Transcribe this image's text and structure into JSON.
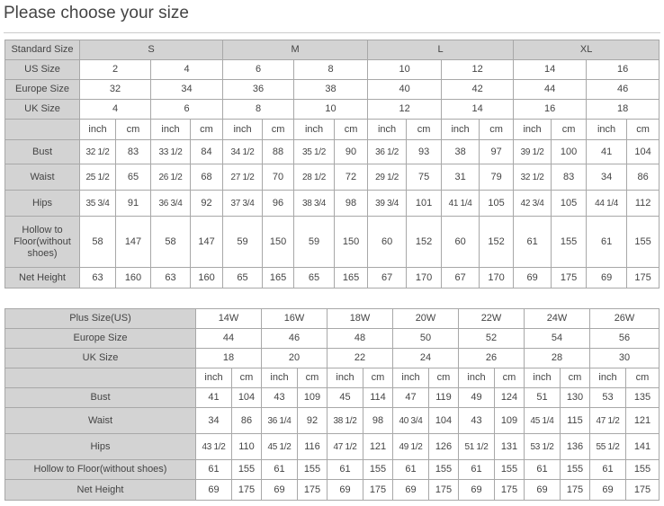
{
  "title": "Please choose your size",
  "standard_table": {
    "header_label": "Standard Size",
    "groups": [
      "S",
      "M",
      "L",
      "XL"
    ],
    "size_rows": [
      {
        "label": "US Size",
        "values": [
          "2",
          "4",
          "6",
          "8",
          "10",
          "12",
          "14",
          "16"
        ]
      },
      {
        "label": "Europe Size",
        "values": [
          "32",
          "34",
          "36",
          "38",
          "40",
          "42",
          "44",
          "46"
        ]
      },
      {
        "label": "UK Size",
        "values": [
          "4",
          "6",
          "8",
          "10",
          "12",
          "14",
          "16",
          "18"
        ]
      }
    ],
    "units": [
      "inch",
      "cm"
    ],
    "measure_rows": [
      {
        "label": "Bust",
        "values": [
          "32 1/2",
          "83",
          "33 1/2",
          "84",
          "34 1/2",
          "88",
          "35 1/2",
          "90",
          "36 1/2",
          "93",
          "38",
          "97",
          "39 1/2",
          "100",
          "41",
          "104"
        ]
      },
      {
        "label": "Waist",
        "values": [
          "25 1/2",
          "65",
          "26 1/2",
          "68",
          "27 1/2",
          "70",
          "28 1/2",
          "72",
          "29 1/2",
          "75",
          "31",
          "79",
          "32 1/2",
          "83",
          "34",
          "86"
        ]
      },
      {
        "label": "Hips",
        "values": [
          "35 3/4",
          "91",
          "36 3/4",
          "92",
          "37 3/4",
          "96",
          "38 3/4",
          "98",
          "39 3/4",
          "101",
          "41 1/4",
          "105",
          "42 3/4",
          "105",
          "44 1/4",
          "112"
        ]
      },
      {
        "label": "Hollow to Floor(without shoes)",
        "values": [
          "58",
          "147",
          "58",
          "147",
          "59",
          "150",
          "59",
          "150",
          "60",
          "152",
          "60",
          "152",
          "61",
          "155",
          "61",
          "155"
        ]
      },
      {
        "label": "Net Height",
        "values": [
          "63",
          "160",
          "63",
          "160",
          "65",
          "165",
          "65",
          "165",
          "67",
          "170",
          "67",
          "170",
          "69",
          "175",
          "69",
          "175"
        ]
      }
    ]
  },
  "plus_table": {
    "size_rows": [
      {
        "label": "Plus Size(US)",
        "values": [
          "14W",
          "16W",
          "18W",
          "20W",
          "22W",
          "24W",
          "26W"
        ]
      },
      {
        "label": "Europe Size",
        "values": [
          "44",
          "46",
          "48",
          "50",
          "52",
          "54",
          "56"
        ]
      },
      {
        "label": "UK Size",
        "values": [
          "18",
          "20",
          "22",
          "24",
          "26",
          "28",
          "30"
        ]
      }
    ],
    "units": [
      "inch",
      "cm"
    ],
    "measure_rows": [
      {
        "label": "Bust",
        "values": [
          "41",
          "104",
          "43",
          "109",
          "45",
          "114",
          "47",
          "119",
          "49",
          "124",
          "51",
          "130",
          "53",
          "135"
        ]
      },
      {
        "label": "Waist",
        "values": [
          "34",
          "86",
          "36 1/4",
          "92",
          "38 1/2",
          "98",
          "40 3/4",
          "104",
          "43",
          "109",
          "45 1/4",
          "115",
          "47 1/2",
          "121"
        ]
      },
      {
        "label": "Hips",
        "values": [
          "43 1/2",
          "110",
          "45 1/2",
          "116",
          "47 1/2",
          "121",
          "49 1/2",
          "126",
          "51 1/2",
          "131",
          "53 1/2",
          "136",
          "55 1/2",
          "141"
        ]
      },
      {
        "label": "Hollow to Floor(without shoes)",
        "values": [
          "61",
          "155",
          "61",
          "155",
          "61",
          "155",
          "61",
          "155",
          "61",
          "155",
          "61",
          "155",
          "61",
          "155"
        ]
      },
      {
        "label": "Net Height",
        "values": [
          "69",
          "175",
          "69",
          "175",
          "69",
          "175",
          "69",
          "175",
          "69",
          "175",
          "69",
          "175",
          "69",
          "175"
        ]
      }
    ]
  }
}
